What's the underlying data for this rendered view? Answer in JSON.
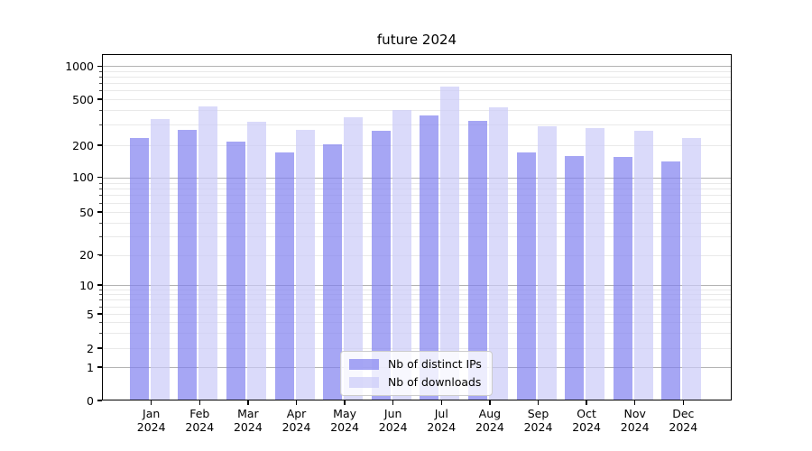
{
  "chart_data": {
    "type": "bar",
    "title": "future 2024",
    "categories": [
      "Jan 2024",
      "Feb 2024",
      "Mar 2024",
      "Apr 2024",
      "May 2024",
      "Jun 2024",
      "Jul 2024",
      "Aug 2024",
      "Sep 2024",
      "Oct 2024",
      "Nov 2024",
      "Dec 2024"
    ],
    "series": [
      {
        "name": "Nb of distinct IPs",
        "key": "distinct-ips",
        "color": "rgba(128,128,239,0.7)",
        "values": [
          230,
          270,
          215,
          170,
          205,
          265,
          365,
          325,
          170,
          157,
          155,
          140
        ]
      },
      {
        "name": "Nb of downloads",
        "key": "downloads",
        "color": "rgba(202,202,248,0.7)",
        "values": [
          335,
          430,
          320,
          270,
          350,
          400,
          650,
          425,
          290,
          280,
          265,
          230
        ]
      }
    ],
    "y_axis": {
      "scale": "symlog",
      "ticks": [
        0,
        1,
        2,
        5,
        10,
        20,
        50,
        100,
        200,
        500,
        1000
      ],
      "range": [
        0,
        1280
      ]
    },
    "grid": "both (major + minor horizontal gridlines)",
    "legend_position": "lower center inside plot",
    "colors": {
      "background": "#ffffff",
      "text": "#000000",
      "major_grid": "#b3b3b3",
      "minor_grid": "#e9e9e9"
    }
  }
}
